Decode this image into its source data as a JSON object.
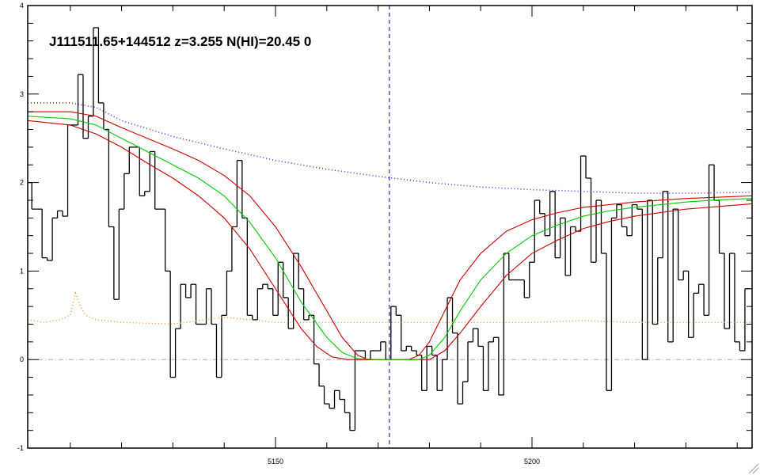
{
  "chart_data": {
    "type": "line",
    "title": "J111511.65+144512 z=3.255 N(HI)=20.45 0",
    "xlim": [
      5101.7,
      5242.9
    ],
    "ylim": [
      -1,
      4
    ],
    "xticks": [
      5150,
      5200
    ],
    "yticks": [
      -1,
      0,
      1,
      2,
      3,
      4
    ],
    "xminorticks": [
      5110,
      5120,
      5130,
      5140,
      5160,
      5170,
      5180,
      5190,
      5210,
      5220,
      5230,
      5240
    ],
    "yminorticks": [
      -0.8,
      -0.6,
      -0.4,
      -0.2,
      0.2,
      0.4,
      0.6,
      0.8,
      1.2,
      1.4,
      1.6,
      1.8,
      2.2,
      2.4,
      2.6,
      2.8,
      3.2,
      3.4,
      3.6,
      3.8
    ],
    "hlines": [
      {
        "value": 0,
        "color": "#aaaaaa",
        "style": "dashdot"
      }
    ],
    "vlines": [
      {
        "value": 5172.2,
        "color": "#0000cc",
        "style": "dashed"
      }
    ],
    "series": [
      {
        "color": "#000000",
        "style": "step",
        "x": [
          5102,
          5103,
          5104,
          5105,
          5106,
          5107,
          5108,
          5109,
          5110,
          5111,
          5112,
          5113,
          5114,
          5115,
          5116,
          5117,
          5118,
          5119,
          5120,
          5121,
          5122,
          5123,
          5124,
          5125,
          5126,
          5127,
          5128,
          5129,
          5130,
          5131,
          5132,
          5133,
          5134,
          5135,
          5136,
          5137,
          5138,
          5139,
          5140,
          5141,
          5142,
          5143,
          5144,
          5145,
          5146,
          5147,
          5148,
          5149,
          5150,
          5151,
          5152,
          5153,
          5154,
          5155,
          5156,
          5157,
          5158,
          5159,
          5160,
          5161,
          5162,
          5163,
          5164,
          5165,
          5166,
          5167,
          5168,
          5169,
          5170,
          5171,
          5172,
          5173,
          5174,
          5175,
          5176,
          5177,
          5178,
          5179,
          5180,
          5181,
          5182,
          5183,
          5184,
          5185,
          5186,
          5187,
          5188,
          5189,
          5190,
          5191,
          5192,
          5193,
          5194,
          5195,
          5196,
          5197,
          5198,
          5199,
          5200,
          5201,
          5202,
          5203,
          5204,
          5205,
          5206,
          5207,
          5208,
          5209,
          5210,
          5211,
          5212,
          5213,
          5214,
          5215,
          5216,
          5217,
          5218,
          5219,
          5220,
          5221,
          5222,
          5223,
          5224,
          5225,
          5226,
          5227,
          5228,
          5229,
          5230,
          5231,
          5232,
          5233,
          5234,
          5235,
          5236,
          5237,
          5238,
          5239,
          5240,
          5241,
          5242
        ],
        "values": [
          2.0,
          1.7,
          1.7,
          1.15,
          1.12,
          1.6,
          1.68,
          1.62,
          2.65,
          2.65,
          3.22,
          2.5,
          2.75,
          3.75,
          2.9,
          2.6,
          1.5,
          0.68,
          1.7,
          2.1,
          2.4,
          2.4,
          1.85,
          1.9,
          2.35,
          1.7,
          1.7,
          1.0,
          -0.2,
          0.35,
          0.85,
          0.7,
          0.85,
          0.4,
          0.4,
          0.8,
          0.4,
          -0.2,
          0.5,
          1.0,
          1.5,
          2.25,
          1.6,
          0.5,
          0.45,
          0.8,
          0.85,
          0.8,
          0.5,
          1.1,
          0.7,
          0.35,
          1.2,
          0.8,
          0.45,
          0.5,
          -0.05,
          -0.3,
          -0.5,
          -0.55,
          -0.35,
          -0.45,
          -0.6,
          -0.8,
          0.1,
          0.1,
          0.0,
          0.1,
          0.1,
          0.2,
          0.0,
          0.6,
          0.5,
          0.1,
          0.15,
          0.1,
          0.05,
          -0.35,
          0.15,
          0.05,
          -0.35,
          0.0,
          0.7,
          0.3,
          -0.5,
          -0.25,
          0.2,
          0.35,
          0.15,
          -0.35,
          0.2,
          0.25,
          -0.4,
          1.2,
          0.9,
          0.9,
          0.9,
          0.7,
          1.1,
          1.8,
          1.65,
          1.4,
          1.9,
          1.15,
          1.6,
          0.95,
          1.5,
          1.45,
          2.3,
          2.05,
          1.1,
          1.8,
          1.2,
          -0.35,
          1.6,
          1.75,
          1.5,
          1.4,
          1.75,
          1.7,
          0.0,
          1.8,
          0.4,
          1.15,
          1.9,
          0.2,
          1.7,
          0.9,
          1.0,
          0.25,
          0.75,
          0.85,
          0.5,
          2.2,
          1.8,
          1.2,
          0.35,
          1.2,
          0.2,
          0.1,
          0.8
        ]
      },
      {
        "color": "#ff9933",
        "style": "dotted",
        "x": [
          5101.7,
          5105,
          5108,
          5110,
          5111,
          5112,
          5113,
          5115,
          5120,
          5130,
          5140,
          5150,
          5160,
          5170,
          5180,
          5190,
          5200,
          5210,
          5220,
          5230,
          5242.9
        ],
        "values": [
          0.45,
          0.42,
          0.45,
          0.5,
          0.75,
          0.6,
          0.5,
          0.45,
          0.42,
          0.4,
          0.48,
          0.42,
          0.42,
          0.42,
          0.42,
          0.42,
          0.42,
          0.44,
          0.42,
          0.42,
          0.42
        ]
      },
      {
        "color": "#3333ff",
        "style": "dotted",
        "x": [
          5101.7,
          5110,
          5115,
          5120,
          5130,
          5140,
          5150,
          5160,
          5170,
          5180,
          5190,
          5200,
          5210,
          5220,
          5230,
          5242.9
        ],
        "values": [
          2.9,
          2.9,
          2.85,
          2.7,
          2.52,
          2.38,
          2.25,
          2.15,
          2.07,
          2.0,
          1.95,
          1.92,
          1.9,
          1.88,
          1.88,
          1.89
        ]
      },
      {
        "color": "#cc0000",
        "style": "solid",
        "x": [
          5101.7,
          5110,
          5115,
          5120,
          5125,
          5130,
          5135,
          5140,
          5145,
          5150,
          5155,
          5160,
          5163,
          5166,
          5168,
          5176,
          5178,
          5180,
          5183,
          5186,
          5190,
          5195,
          5200,
          5205,
          5210,
          5220,
          5230,
          5242.9
        ],
        "values": [
          2.8,
          2.8,
          2.75,
          2.62,
          2.5,
          2.38,
          2.25,
          2.08,
          1.85,
          1.5,
          1.05,
          0.55,
          0.25,
          0.05,
          0,
          0,
          0.05,
          0.2,
          0.55,
          0.9,
          1.2,
          1.45,
          1.58,
          1.66,
          1.72,
          1.78,
          1.82,
          1.85
        ]
      },
      {
        "color": "#cc0000",
        "style": "solid",
        "x": [
          5101.7,
          5110,
          5115,
          5120,
          5125,
          5130,
          5135,
          5140,
          5145,
          5150,
          5155,
          5158,
          5161,
          5164,
          5180,
          5183,
          5186,
          5190,
          5195,
          5200,
          5205,
          5210,
          5215,
          5220,
          5230,
          5242.9
        ],
        "values": [
          2.7,
          2.65,
          2.55,
          2.4,
          2.22,
          2.05,
          1.85,
          1.6,
          1.25,
          0.8,
          0.35,
          0.15,
          0.03,
          0,
          0,
          0.1,
          0.3,
          0.6,
          0.95,
          1.2,
          1.35,
          1.48,
          1.56,
          1.62,
          1.7,
          1.76
        ]
      },
      {
        "color": "#00cc00",
        "style": "solid",
        "x": [
          5101.7,
          5110,
          5115,
          5120,
          5125,
          5130,
          5135,
          5140,
          5145,
          5150,
          5155,
          5160,
          5163,
          5166,
          5170,
          5175,
          5178,
          5180,
          5183,
          5186,
          5190,
          5195,
          5200,
          5205,
          5210,
          5215,
          5220,
          5225,
          5230,
          5235,
          5242.9
        ],
        "values": [
          2.75,
          2.72,
          2.65,
          2.5,
          2.35,
          2.2,
          2.05,
          1.85,
          1.55,
          1.15,
          0.65,
          0.25,
          0.08,
          0.01,
          0,
          0,
          0,
          0.05,
          0.25,
          0.55,
          0.9,
          1.2,
          1.4,
          1.52,
          1.62,
          1.68,
          1.72,
          1.75,
          1.78,
          1.8,
          1.82
        ]
      }
    ]
  }
}
